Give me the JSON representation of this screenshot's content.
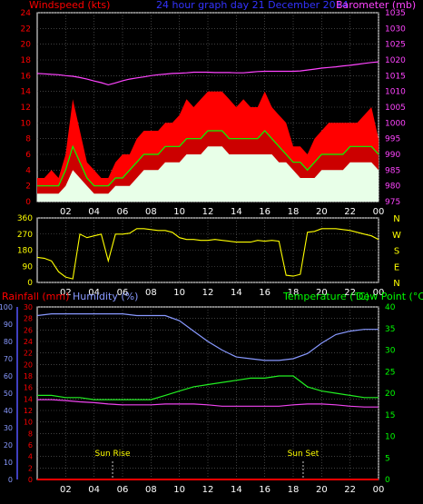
{
  "header": {
    "left_title": "Windspeed (kts)",
    "center_title": "24 hour graph day  21 December 2014",
    "right_title": "Barometer (mb)"
  },
  "colors": {
    "red": "#ff0000",
    "green": "#00ff00",
    "white": "#e8ffe8",
    "magenta": "#ff44ff",
    "yellow": "#ffff00",
    "blue": "#5555ff",
    "pale_blue": "#8899ff",
    "teal": "#00cc88",
    "grid": "#666666",
    "axis": "#ffffff"
  },
  "chart_data": [
    {
      "type": "line",
      "panel": "wind_baro",
      "xticks": [
        "02",
        "04",
        "06",
        "08",
        "10",
        "12",
        "14",
        "16",
        "18",
        "20",
        "22",
        "00"
      ],
      "left_axis": {
        "label": "Windspeed (kts)",
        "ylim": [
          0,
          24
        ],
        "ticks": [
          0,
          2,
          4,
          6,
          8,
          10,
          12,
          14,
          16,
          18,
          20,
          22,
          24
        ]
      },
      "right_axis": {
        "label": "Barometer (mb)",
        "ylim": [
          975,
          1035
        ],
        "ticks": [
          975,
          980,
          985,
          990,
          995,
          1000,
          1005,
          1010,
          1015,
          1020,
          1025,
          1030,
          1035
        ]
      },
      "hours": [
        0,
        0.5,
        1,
        1.5,
        2,
        2.5,
        3,
        3.5,
        4,
        4.5,
        5,
        5.5,
        6,
        6.5,
        7,
        7.5,
        8,
        8.5,
        9,
        9.5,
        10,
        10.5,
        11,
        11.5,
        12,
        12.5,
        13,
        13.5,
        14,
        14.5,
        15,
        15.5,
        16,
        16.5,
        17,
        17.5,
        18,
        18.5,
        19,
        19.5,
        20,
        20.5,
        21,
        21.5,
        22,
        22.5,
        23,
        23.5,
        24
      ],
      "series": [
        {
          "name": "gust",
          "axis": "left",
          "values": [
            3,
            3,
            4,
            3,
            6,
            13,
            9,
            5,
            4,
            3,
            3,
            5,
            6,
            6,
            8,
            9,
            9,
            9,
            10,
            10,
            11,
            13,
            12,
            13,
            14,
            14,
            14,
            13,
            12,
            13,
            12,
            12,
            14,
            12,
            11,
            10,
            7,
            7,
            6,
            8,
            9,
            10,
            10,
            10,
            10,
            10,
            11,
            12,
            8
          ]
        },
        {
          "name": "speed",
          "axis": "left",
          "values": [
            2,
            2,
            2,
            2,
            4,
            7,
            5,
            3,
            2,
            2,
            2,
            3,
            3,
            4,
            5,
            6,
            6,
            6,
            7,
            7,
            7,
            8,
            8,
            8,
            9,
            9,
            9,
            8,
            8,
            8,
            8,
            8,
            9,
            8,
            7,
            6,
            5,
            5,
            4,
            5,
            6,
            6,
            6,
            6,
            7,
            7,
            7,
            7,
            6
          ]
        },
        {
          "name": "average",
          "axis": "left",
          "values": [
            1,
            1,
            1,
            1,
            2,
            4,
            3,
            2,
            1,
            1,
            1,
            2,
            2,
            2,
            3,
            4,
            4,
            4,
            5,
            5,
            5,
            6,
            6,
            6,
            7,
            7,
            7,
            6,
            6,
            6,
            6,
            6,
            6,
            6,
            5,
            5,
            4,
            3,
            3,
            3,
            4,
            4,
            4,
            4,
            5,
            5,
            5,
            5,
            4
          ]
        },
        {
          "name": "barometer",
          "axis": "right",
          "values": [
            1015.7,
            1015.6,
            1015.4,
            1015.3,
            1015.0,
            1014.8,
            1014.4,
            1013.9,
            1013.3,
            1012.8,
            1012.1,
            1012.7,
            1013.4,
            1013.9,
            1014.3,
            1014.6,
            1015.0,
            1015.3,
            1015.5,
            1015.7,
            1015.8,
            1015.9,
            1016.1,
            1016.1,
            1016.1,
            1016.0,
            1016.0,
            1016.0,
            1015.9,
            1015.9,
            1016.1,
            1016.3,
            1016.4,
            1016.4,
            1016.4,
            1016.4,
            1016.4,
            1016.5,
            1016.8,
            1017.1,
            1017.4,
            1017.6,
            1017.8,
            1018.1,
            1018.3,
            1018.6,
            1018.9,
            1019.2,
            1019.4
          ]
        }
      ]
    },
    {
      "type": "line",
      "panel": "direction",
      "xticks": [
        "02",
        "04",
        "06",
        "08",
        "10",
        "12",
        "14",
        "16",
        "18",
        "20",
        "22",
        "00"
      ],
      "left_axis": {
        "ylim": [
          0,
          360
        ],
        "ticks": [
          0,
          90,
          180,
          270,
          360
        ]
      },
      "right_axis": {
        "ticks": [
          "N",
          "W",
          "S",
          "E",
          "N"
        ]
      },
      "hours": [
        0,
        0.5,
        1,
        1.5,
        2,
        2.5,
        3,
        3.5,
        4,
        4.5,
        5,
        5.5,
        6,
        6.5,
        7,
        7.5,
        8,
        8.5,
        9,
        9.5,
        10,
        10.5,
        11,
        11.5,
        12,
        12.5,
        13,
        13.5,
        14,
        14.5,
        15,
        15.5,
        16,
        16.5,
        17,
        17.5,
        18,
        18.5,
        19,
        19.5,
        20,
        20.5,
        21,
        21.5,
        22,
        22.5,
        23,
        23.5,
        24
      ],
      "series": [
        {
          "name": "direction",
          "values": [
            140,
            135,
            120,
            60,
            30,
            20,
            270,
            250,
            260,
            270,
            120,
            270,
            270,
            275,
            300,
            300,
            295,
            290,
            290,
            280,
            250,
            240,
            240,
            235,
            235,
            240,
            235,
            230,
            225,
            225,
            225,
            235,
            230,
            235,
            230,
            40,
            35,
            45,
            280,
            285,
            300,
            300,
            300,
            295,
            290,
            280,
            270,
            260,
            240
          ]
        }
      ]
    },
    {
      "type": "line",
      "panel": "temp_hum",
      "xticks": [
        "02",
        "04",
        "06",
        "08",
        "10",
        "12",
        "14",
        "16",
        "18",
        "20",
        "22",
        "00"
      ],
      "left_axis_outer": {
        "label": "Humidity (%)",
        "ylim": [
          0,
          100
        ],
        "ticks": [
          0,
          10,
          20,
          30,
          40,
          50,
          60,
          70,
          80,
          90,
          100
        ]
      },
      "left_axis_inner": {
        "label": "Rainfall (mm)",
        "ylim": [
          0,
          30
        ],
        "ticks": [
          0,
          2,
          4,
          6,
          8,
          10,
          12,
          14,
          16,
          18,
          20,
          22,
          24,
          26,
          28,
          30
        ]
      },
      "right_axis": {
        "label": "Temperature (°C)Dew Point (°C)",
        "ylim": [
          0,
          40
        ],
        "ticks": [
          0,
          5,
          10,
          15,
          20,
          25,
          30,
          35,
          40
        ]
      },
      "hours": [
        0,
        1,
        2,
        3,
        4,
        5,
        6,
        7,
        8,
        9,
        10,
        11,
        12,
        13,
        14,
        15,
        16,
        17,
        18,
        19,
        20,
        21,
        22,
        23,
        24
      ],
      "series": [
        {
          "name": "humidity",
          "axis": "left_outer",
          "values": [
            95,
            96,
            96,
            96,
            96,
            96,
            96,
            95,
            95,
            95,
            92,
            86,
            80,
            75,
            71,
            70,
            69,
            69,
            70,
            73,
            79,
            84,
            86,
            87,
            87
          ]
        },
        {
          "name": "temperature",
          "axis": "right",
          "values": [
            19.5,
            19.5,
            19.0,
            19.0,
            18.5,
            18.5,
            18.5,
            18.5,
            18.5,
            19.5,
            20.5,
            21.5,
            22.0,
            22.5,
            23.0,
            23.5,
            23.5,
            24.0,
            24.0,
            21.5,
            20.5,
            20.0,
            19.5,
            19.0,
            19.0
          ]
        },
        {
          "name": "dew_point",
          "axis": "right",
          "values": [
            18.5,
            18.5,
            18.3,
            18.0,
            17.8,
            17.5,
            17.3,
            17.3,
            17.3,
            17.5,
            17.5,
            17.5,
            17.3,
            17.0,
            17.0,
            17.0,
            17.0,
            17.0,
            17.3,
            17.5,
            17.5,
            17.3,
            17.0,
            16.8,
            16.8
          ]
        },
        {
          "name": "rainfall",
          "axis": "left_inner",
          "values": [
            0,
            0,
            0,
            0,
            0,
            0,
            0,
            0,
            0,
            0,
            0,
            0,
            0,
            0,
            0,
            0,
            0,
            0,
            0,
            0,
            0,
            0,
            0,
            0,
            0
          ]
        }
      ],
      "annotations": [
        {
          "label": "Sun Rise",
          "hour": 5.3
        },
        {
          "label": "Sun Set",
          "hour": 18.7
        }
      ]
    }
  ],
  "labels": {
    "rainfall": "Rainfall (mm)",
    "humidity": "Humidity (%)",
    "temperature": "Temperature (°C)",
    "dew_point": "Dew Point (°C)",
    "sun_rise": "Sun Rise",
    "sun_set": "Sun Set"
  }
}
